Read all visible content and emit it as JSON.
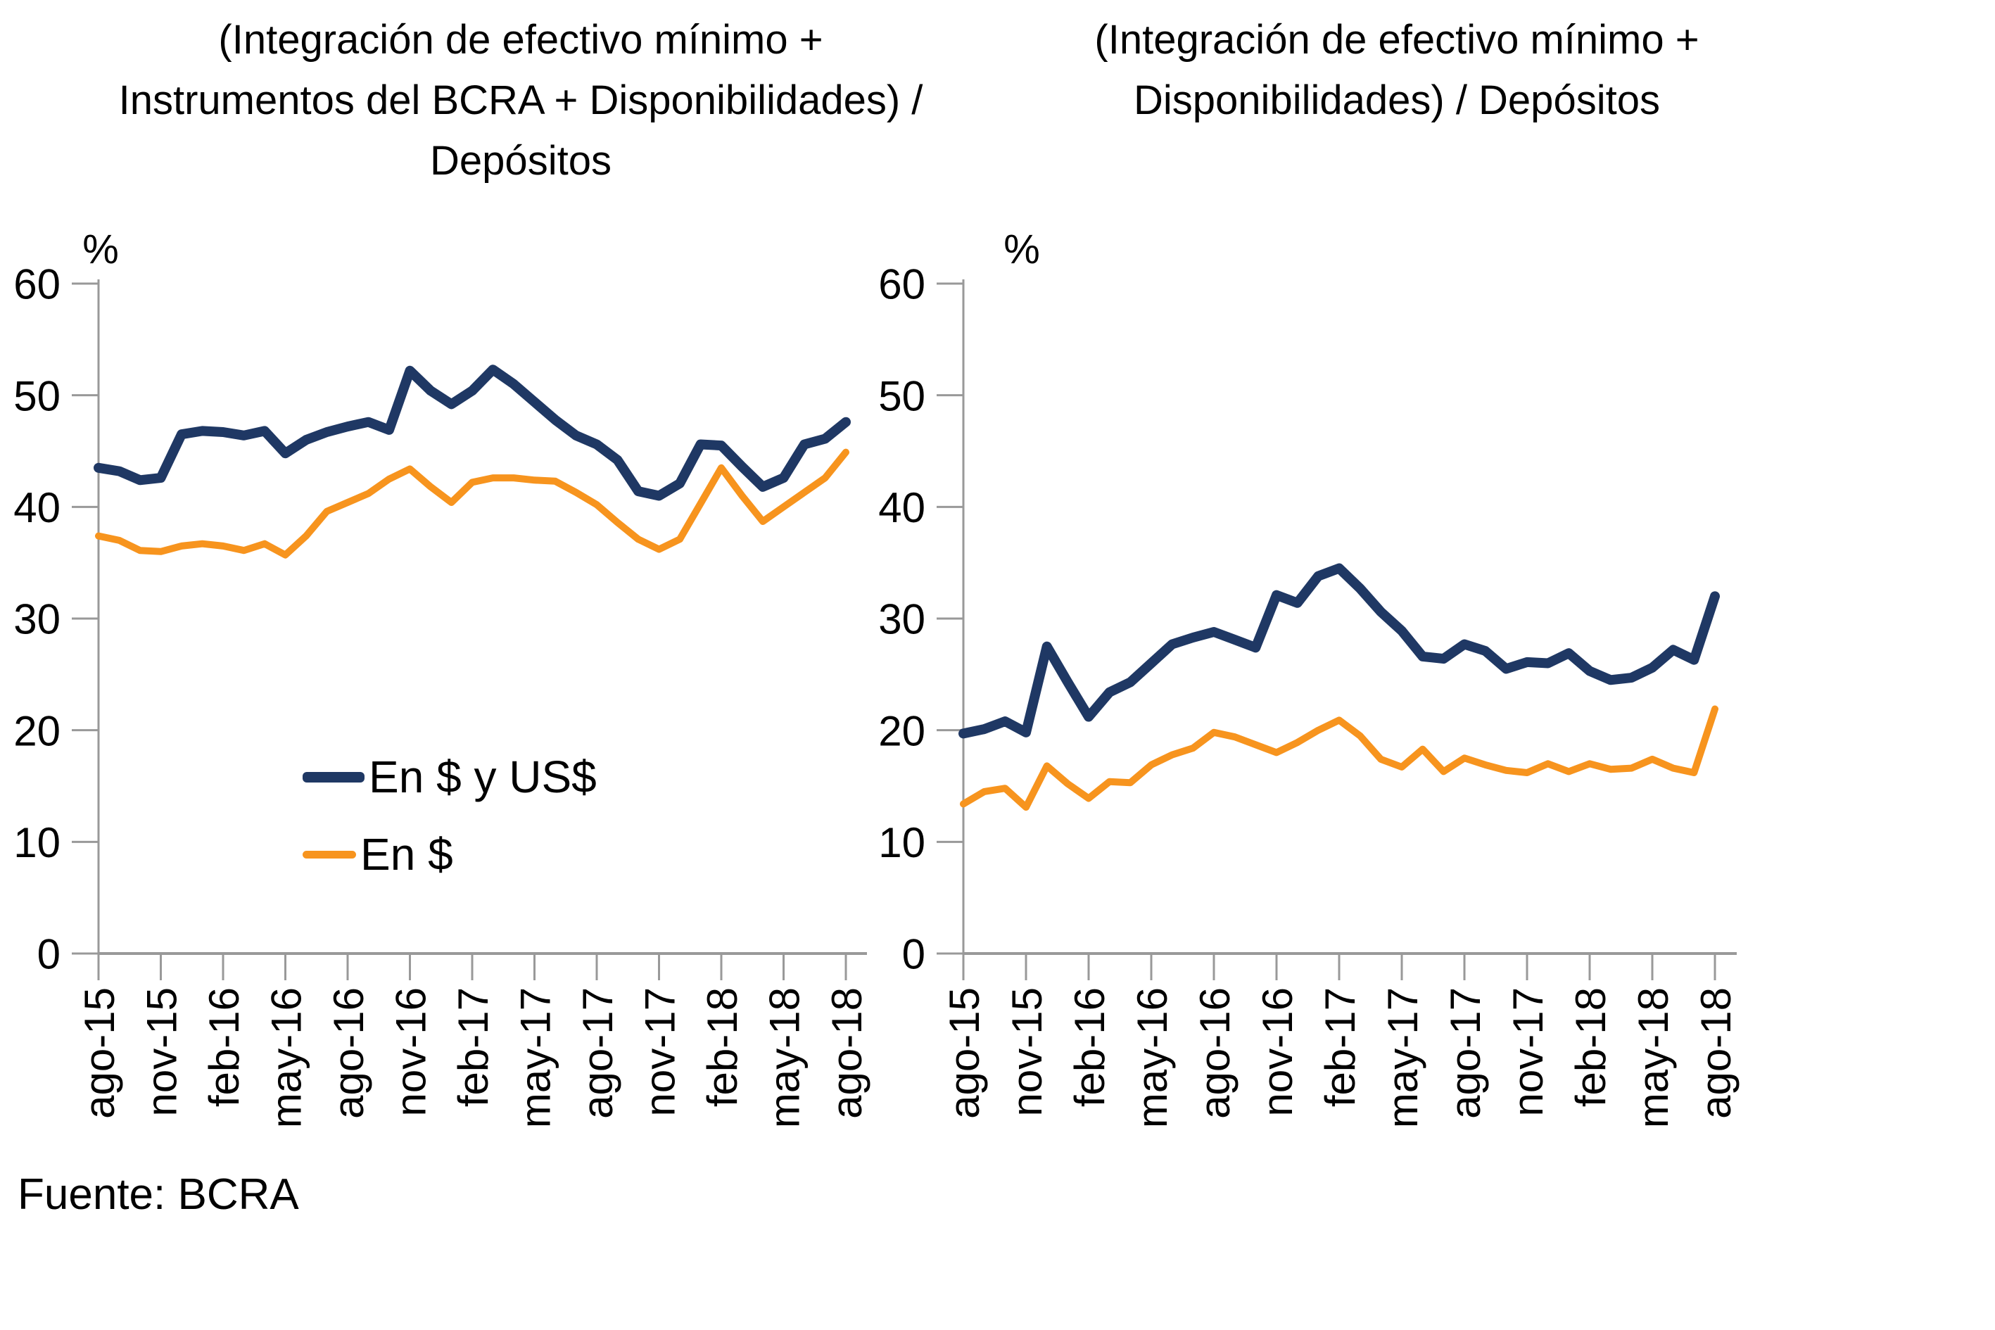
{
  "page": {
    "background": "#FFFFFF"
  },
  "source_note": "Fuente: BCRA",
  "colors": {
    "navy": "#1F3864",
    "orange": "#F7941E",
    "axis": "#999999",
    "text": "#000000"
  },
  "legend": {
    "items": [
      {
        "label": "En $ y US$",
        "color": "#1F3864"
      },
      {
        "label": "En $",
        "color": "#F7941E"
      }
    ]
  },
  "chart_data": [
    {
      "type": "line",
      "title": "(Integración de efectivo mínimo +\nInstrumentos del BCRA + Disponibilidades) /\nDepósitos",
      "unit_label": "%",
      "ylim": [
        0,
        60
      ],
      "y_ticks": [
        0,
        10,
        20,
        30,
        40,
        50,
        60
      ],
      "grid": false,
      "legend_position": "inside-bottom-left",
      "x_tick_labels": [
        "ago-15",
        "nov-15",
        "feb-16",
        "may-16",
        "ago-16",
        "nov-16",
        "feb-17",
        "may-17",
        "ago-17",
        "nov-17",
        "feb-18",
        "may-18",
        "ago-18"
      ],
      "months": [
        "ago-15",
        "sep-15",
        "oct-15",
        "nov-15",
        "dic-15",
        "ene-16",
        "feb-16",
        "mar-16",
        "abr-16",
        "may-16",
        "jun-16",
        "jul-16",
        "ago-16",
        "sep-16",
        "oct-16",
        "nov-16",
        "dic-16",
        "ene-17",
        "feb-17",
        "mar-17",
        "abr-17",
        "may-17",
        "jun-17",
        "jul-17",
        "ago-17",
        "sep-17",
        "oct-17",
        "nov-17",
        "dic-17",
        "ene-18",
        "feb-18",
        "mar-18",
        "abr-18",
        "may-18",
        "jun-18",
        "jul-18",
        "ago-18"
      ],
      "series": [
        {
          "name": "En $ y US$",
          "color": "#1F3864",
          "values": [
            43.5,
            43.2,
            42.4,
            42.6,
            46.5,
            46.8,
            46.7,
            46.4,
            46.8,
            44.8,
            46.0,
            46.7,
            47.2,
            47.6,
            46.9,
            52.2,
            50.4,
            49.2,
            50.4,
            52.3,
            51.0,
            49.4,
            47.8,
            46.4,
            45.6,
            44.2,
            41.4,
            41.0,
            42.1,
            45.6,
            45.5,
            43.6,
            41.8,
            42.6,
            45.6,
            46.1,
            47.6
          ]
        },
        {
          "name": "En $",
          "color": "#F7941E",
          "values": [
            37.4,
            37.0,
            36.1,
            36.0,
            36.5,
            36.7,
            36.5,
            36.1,
            36.7,
            35.7,
            37.4,
            39.6,
            40.4,
            41.2,
            42.5,
            43.4,
            41.8,
            40.4,
            42.2,
            42.6,
            42.6,
            42.4,
            42.3,
            41.3,
            40.2,
            38.6,
            37.1,
            36.2,
            37.1,
            40.3,
            43.5,
            41.0,
            38.7,
            40.0,
            41.3,
            42.6,
            44.9
          ]
        }
      ]
    },
    {
      "type": "line",
      "title": "(Integración de efectivo mínimo +\nDisponibilidades) / Depósitos",
      "unit_label": "%",
      "ylim": [
        0,
        60
      ],
      "y_ticks": [
        0,
        10,
        20,
        30,
        40,
        50,
        60
      ],
      "grid": false,
      "legend_position": "none",
      "x_tick_labels": [
        "ago-15",
        "nov-15",
        "feb-16",
        "may-16",
        "ago-16",
        "nov-16",
        "feb-17",
        "may-17",
        "ago-17",
        "nov-17",
        "feb-18",
        "may-18",
        "ago-18"
      ],
      "months": [
        "ago-15",
        "sep-15",
        "oct-15",
        "nov-15",
        "dic-15",
        "ene-16",
        "feb-16",
        "mar-16",
        "abr-16",
        "may-16",
        "jun-16",
        "jul-16",
        "ago-16",
        "sep-16",
        "oct-16",
        "nov-16",
        "dic-16",
        "ene-17",
        "feb-17",
        "mar-17",
        "abr-17",
        "may-17",
        "jun-17",
        "jul-17",
        "ago-17",
        "sep-17",
        "oct-17",
        "nov-17",
        "dic-17",
        "ene-18",
        "feb-18",
        "mar-18",
        "abr-18",
        "may-18",
        "jun-18",
        "jul-18",
        "ago-18"
      ],
      "series": [
        {
          "name": "En $ y US$",
          "color": "#1F3864",
          "values": [
            19.7,
            20.1,
            20.8,
            19.8,
            27.5,
            24.3,
            21.2,
            23.4,
            24.3,
            26.0,
            27.7,
            28.3,
            28.8,
            28.1,
            27.4,
            32.1,
            31.4,
            33.8,
            34.5,
            32.7,
            30.6,
            28.9,
            26.6,
            26.4,
            27.7,
            27.1,
            25.5,
            26.1,
            26.0,
            26.9,
            25.3,
            24.5,
            24.7,
            25.6,
            27.2,
            26.3,
            32.0
          ]
        },
        {
          "name": "En $",
          "color": "#F7941E",
          "values": [
            13.4,
            14.5,
            14.8,
            13.1,
            16.8,
            15.2,
            13.9,
            15.4,
            15.3,
            16.9,
            17.8,
            18.4,
            19.8,
            19.4,
            18.7,
            18.0,
            18.9,
            20.0,
            20.9,
            19.5,
            17.4,
            16.7,
            18.3,
            16.3,
            17.5,
            16.9,
            16.4,
            16.2,
            17.0,
            16.3,
            17.0,
            16.5,
            16.6,
            17.4,
            16.6,
            16.2,
            21.9
          ]
        }
      ]
    }
  ]
}
